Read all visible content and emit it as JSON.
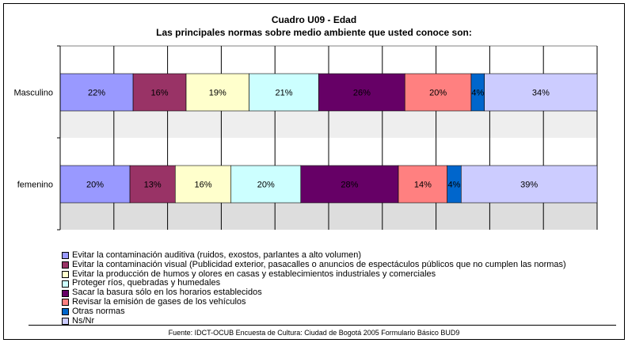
{
  "title": "Cuadro U09 - Edad",
  "subtitle": "Las principales normas sobre medio ambiente que usted conoce son:",
  "source": "Fuente: IDCT-OCUB Encuesta de Cultura: Ciudad de Bogotá 2005 Formulario Básico BUD9",
  "chart_data": {
    "type": "bar",
    "orientation": "horizontal",
    "stacked": true,
    "categories": [
      "Masculino",
      "femenino"
    ],
    "series": [
      {
        "name": "Evitar la contaminación auditiva (ruidos, exostos, parlantes a alto volumen)",
        "values": [
          22,
          20
        ],
        "labels": [
          "22%",
          "20%"
        ],
        "color": "#9999ff",
        "text_color": "#000000"
      },
      {
        "name": "Evitar la contaminación visual (Publicidad exterior, pasacalles o anuncios de espectáculos públicos que no cumplen las normas)",
        "values": [
          16,
          13
        ],
        "labels": [
          "16%",
          "13%"
        ],
        "color": "#993366",
        "text_color": "#000000"
      },
      {
        "name": "Evitar la producción de humos y  olores en casas y  establecimientos industriales y  comerciales",
        "values": [
          19,
          16
        ],
        "labels": [
          "19%",
          "16%"
        ],
        "color": "#ffffcc",
        "text_color": "#000000"
      },
      {
        "name": "Proteger ríos, quebradas y humedales",
        "values": [
          21,
          20
        ],
        "labels": [
          "21%",
          "20%"
        ],
        "color": "#ccffff",
        "text_color": "#000000"
      },
      {
        "name": "Sacar la basura sólo en los horarios establecidos",
        "values": [
          26,
          28
        ],
        "labels": [
          "26%",
          "28%"
        ],
        "color": "#660066",
        "text_color": "#000000"
      },
      {
        "name": "Revisar la emisión de gases de los vehículos",
        "values": [
          20,
          14
        ],
        "labels": [
          "20%",
          "14%"
        ],
        "color": "#ff8080",
        "text_color": "#000000"
      },
      {
        "name": "Otras normas",
        "values": [
          4,
          4
        ],
        "labels": [
          "4%",
          "4%"
        ],
        "color": "#0066cc",
        "text_color": "#000000"
      },
      {
        "name": "Ns/Nr",
        "values": [
          34,
          39
        ],
        "labels": [
          "34%",
          "39%"
        ],
        "color": "#ccccff",
        "text_color": "#000000"
      }
    ],
    "grid": true,
    "legend_position": "bottom"
  }
}
